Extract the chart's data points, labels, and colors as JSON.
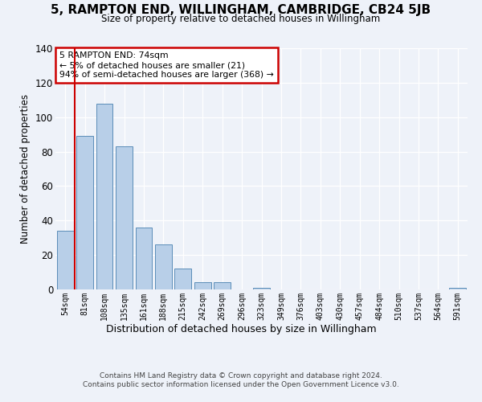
{
  "title": "5, RAMPTON END, WILLINGHAM, CAMBRIDGE, CB24 5JB",
  "subtitle": "Size of property relative to detached houses in Willingham",
  "xlabel": "Distribution of detached houses by size in Willingham",
  "ylabel": "Number of detached properties",
  "categories": [
    "54sqm",
    "81sqm",
    "108sqm",
    "135sqm",
    "161sqm",
    "188sqm",
    "215sqm",
    "242sqm",
    "269sqm",
    "296sqm",
    "323sqm",
    "349sqm",
    "376sqm",
    "403sqm",
    "430sqm",
    "457sqm",
    "484sqm",
    "510sqm",
    "537sqm",
    "564sqm",
    "591sqm"
  ],
  "values": [
    34,
    89,
    108,
    83,
    36,
    26,
    12,
    4,
    4,
    0,
    1,
    0,
    0,
    0,
    0,
    0,
    0,
    0,
    0,
    0,
    1
  ],
  "bar_color": "#b8cfe8",
  "bar_edge_color": "#5b8db8",
  "annotation_line1": "5 RAMPTON END: 74sqm",
  "annotation_line2": "← 5% of detached houses are smaller (21)",
  "annotation_line3": "94% of semi-detached houses are larger (368) →",
  "annotation_box_color": "#ffffff",
  "annotation_box_edge_color": "#cc0000",
  "red_line_color": "#cc0000",
  "ylim": [
    0,
    140
  ],
  "yticks": [
    0,
    20,
    40,
    60,
    80,
    100,
    120,
    140
  ],
  "background_color": "#eef2f9",
  "plot_bg_color": "#eef2f9",
  "footer_line1": "Contains HM Land Registry data © Crown copyright and database right 2024.",
  "footer_line2": "Contains public sector information licensed under the Open Government Licence v3.0."
}
